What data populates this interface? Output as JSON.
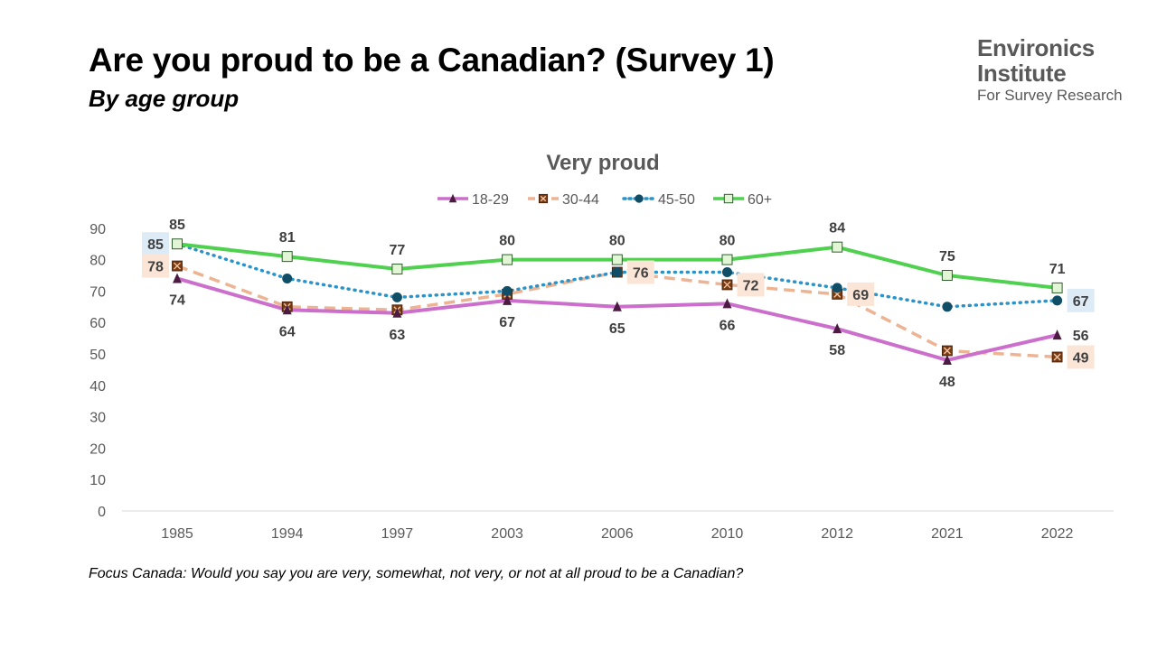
{
  "header": {
    "title": "Are you proud to be a Canadian? (Survey 1)",
    "subtitle": "By age group"
  },
  "logo": {
    "line1": "Environics",
    "line2": "Institute",
    "line3": "For Survey Research"
  },
  "footnote": "Focus Canada: Would you say you are very, somewhat, not very, or not at all proud to be a Canadian?",
  "chart_data": {
    "type": "line",
    "title": "Very proud",
    "categories": [
      "1985",
      "1994",
      "1997",
      "2003",
      "2006",
      "2010",
      "2012",
      "2021",
      "2022"
    ],
    "ylim": [
      0,
      90
    ],
    "yticks": [
      0,
      10,
      20,
      30,
      40,
      50,
      60,
      70,
      80,
      90
    ],
    "grid": false,
    "legend": "top-center",
    "series": [
      {
        "name": "18-29",
        "values": [
          74,
          64,
          63,
          67,
          65,
          66,
          58,
          48,
          56
        ],
        "color": "#CC6FCC",
        "style": "solid",
        "marker": "triangle",
        "marker_color": "#4B1B42"
      },
      {
        "name": "30-44",
        "values": [
          78,
          65,
          64,
          69,
          76,
          72,
          69,
          51,
          49
        ],
        "color": "#EDB493",
        "style": "dashed",
        "marker": "x-square",
        "marker_color": "#7A3B12"
      },
      {
        "name": "45-50",
        "values": [
          85,
          74,
          68,
          70,
          76,
          76,
          71,
          65,
          67
        ],
        "color": "#2A93C9",
        "style": "dotted",
        "marker": "circle",
        "marker_color": "#0F4E66"
      },
      {
        "name": "60+",
        "values": [
          85,
          81,
          77,
          80,
          80,
          80,
          84,
          75,
          71
        ],
        "color": "#4FD14F",
        "style": "solid",
        "marker": "square",
        "marker_color": "#E2F5D4"
      }
    ],
    "data_labels": [
      {
        "series": "60+",
        "index": 0,
        "text": "85",
        "place": "above"
      },
      {
        "series": "60+",
        "index": 1,
        "text": "81",
        "place": "above"
      },
      {
        "series": "60+",
        "index": 2,
        "text": "77",
        "place": "above"
      },
      {
        "series": "60+",
        "index": 3,
        "text": "80",
        "place": "above"
      },
      {
        "series": "60+",
        "index": 4,
        "text": "80",
        "place": "above"
      },
      {
        "series": "60+",
        "index": 5,
        "text": "80",
        "place": "above"
      },
      {
        "series": "60+",
        "index": 6,
        "text": "84",
        "place": "above"
      },
      {
        "series": "60+",
        "index": 7,
        "text": "75",
        "place": "above"
      },
      {
        "series": "60+",
        "index": 8,
        "text": "71",
        "place": "above"
      },
      {
        "series": "18-29",
        "index": 0,
        "text": "74",
        "place": "below"
      },
      {
        "series": "18-29",
        "index": 1,
        "text": "64",
        "place": "below"
      },
      {
        "series": "18-29",
        "index": 2,
        "text": "63",
        "place": "below"
      },
      {
        "series": "18-29",
        "index": 3,
        "text": "67",
        "place": "below"
      },
      {
        "series": "18-29",
        "index": 4,
        "text": "65",
        "place": "below"
      },
      {
        "series": "18-29",
        "index": 5,
        "text": "66",
        "place": "below"
      },
      {
        "series": "18-29",
        "index": 6,
        "text": "58",
        "place": "below"
      },
      {
        "series": "18-29",
        "index": 7,
        "text": "48",
        "place": "below"
      },
      {
        "series": "18-29",
        "index": 8,
        "text": "56",
        "place": "right"
      },
      {
        "series": "45-50",
        "index": 0,
        "text": "85",
        "place": "left",
        "box": "#DDEBF7"
      },
      {
        "series": "45-50",
        "index": 8,
        "text": "67",
        "place": "right",
        "box": "#DDEBF7"
      },
      {
        "series": "30-44",
        "index": 0,
        "text": "78",
        "place": "left",
        "box": "#FBE5D6"
      },
      {
        "series": "30-44",
        "index": 4,
        "text": "76",
        "place": "right",
        "box": "#FBE5D6"
      },
      {
        "series": "30-44",
        "index": 5,
        "text": "72",
        "place": "right",
        "box": "#FBE5D6"
      },
      {
        "series": "30-44",
        "index": 6,
        "text": "69",
        "place": "right",
        "box": "#FBE5D6"
      },
      {
        "series": "30-44",
        "index": 8,
        "text": "49",
        "place": "right",
        "box": "#FBE5D6"
      }
    ]
  }
}
